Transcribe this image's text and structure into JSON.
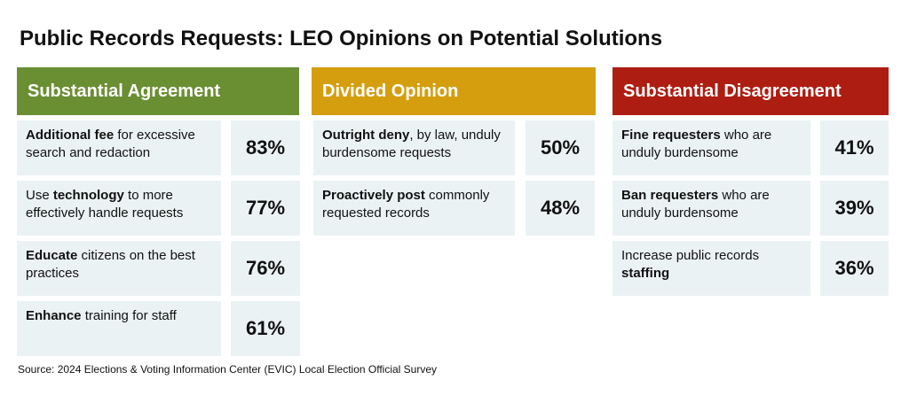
{
  "chart_data": {
    "type": "table",
    "title": "Public Records Requests: LEO Opinions on Potential Solutions",
    "source": "Source: 2024 Elections & Voting Information Center (EVIC) Local Election Official Survey",
    "colors": {
      "agreement": "#6a8f33",
      "divided": "#d49e0f",
      "disagreement": "#ae1d12",
      "cell": "#ebf2f4"
    },
    "groups": [
      {
        "name": "Substantial Agreement",
        "items": [
          {
            "bold": "Additional fee",
            "rest": " for excessive search and redaction",
            "value": "83%"
          },
          {
            "pre": "Use ",
            "bold": "technology",
            "rest": " to more effectively handle requests",
            "value": "77%"
          },
          {
            "bold": "Educate",
            "rest": " citizens on the best practices",
            "value": "76%"
          },
          {
            "bold": "Enhance",
            "rest": " training for staff",
            "value": "61%"
          }
        ]
      },
      {
        "name": "Divided Opinion",
        "items": [
          {
            "bold": "Outright deny",
            "rest": ", by law, unduly burdensome requests",
            "value": "50%"
          },
          {
            "bold": "Proactively post",
            "rest": " commonly requested records",
            "value": "48%"
          }
        ]
      },
      {
        "name": "Substantial Disagreement",
        "items": [
          {
            "bold": "Fine requesters",
            "rest": " who are unduly burdensome",
            "value": "41%"
          },
          {
            "bold": "Ban requesters",
            "rest": " who are unduly burdensome",
            "value": "39%"
          },
          {
            "pre": "Increase public records ",
            "bold": "staffing",
            "rest": "",
            "value": "36%"
          }
        ]
      }
    ]
  }
}
